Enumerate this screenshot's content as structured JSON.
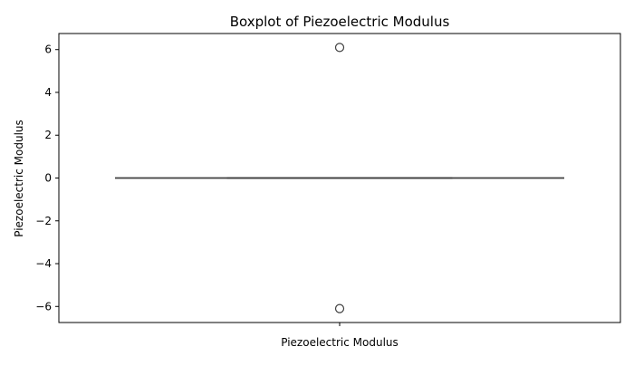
{
  "chart_data": {
    "type": "box",
    "title": "Boxplot of Piezoelectric Modulus",
    "xlabel": "Piezoelectric Modulus",
    "ylabel": "Piezoelectric Modulus",
    "categories": [
      "Piezoelectric Modulus"
    ],
    "ylim": [
      -6.75,
      6.75
    ],
    "yticks": [
      -6,
      -4,
      -2,
      0,
      2,
      4,
      6
    ],
    "ytick_labels": [
      "−6",
      "−4",
      "−2",
      "0",
      "2",
      "4",
      "6"
    ],
    "box": {
      "q1": 0,
      "median": 0,
      "q3": 0,
      "whisker_low": 0,
      "whisker_high": 0
    },
    "outliers": [
      6.1,
      -6.1
    ],
    "grid": false,
    "legend": "none",
    "colors": {
      "box_edge": "#3f3f3f",
      "outlier_edge": "#3f3f3f",
      "axis": "#000000"
    }
  }
}
